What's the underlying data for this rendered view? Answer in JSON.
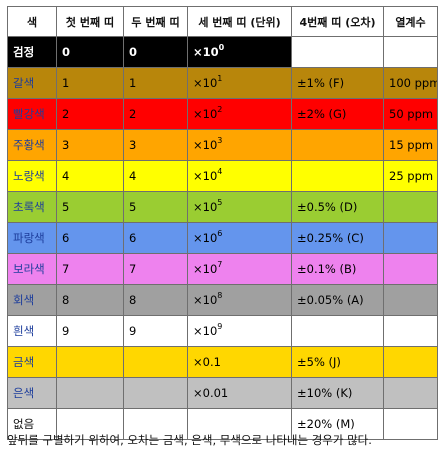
{
  "headers": [
    "색",
    "첫 번째 띠",
    "두 번째 띠",
    "세 번째 띠 (단위)",
    "4번째 띠 (오차)",
    "열계수"
  ],
  "rows": [
    {
      "name": "검정",
      "bg": "#000000",
      "first": "0",
      "second": "0",
      "mult_base": "×10",
      "mult_exp": "0",
      "tol": "",
      "temp": ""
    },
    {
      "name": "갈색",
      "bg": "#b8860b",
      "first": "1",
      "second": "1",
      "mult_base": "×10",
      "mult_exp": "1",
      "tol": "±1% (F)",
      "temp": "100 ppm"
    },
    {
      "name": "빨강색",
      "bg": "#ff0000",
      "first": "2",
      "second": "2",
      "mult_base": "×10",
      "mult_exp": "2",
      "tol": "±2% (G)",
      "temp": "50 ppm"
    },
    {
      "name": "주황색",
      "bg": "#ffa500",
      "first": "3",
      "second": "3",
      "mult_base": "×10",
      "mult_exp": "3",
      "tol": "",
      "temp": "15 ppm"
    },
    {
      "name": "노랑색",
      "bg": "#ffff00",
      "first": "4",
      "second": "4",
      "mult_base": "×10",
      "mult_exp": "4",
      "tol": "",
      "temp": "25 ppm"
    },
    {
      "name": "초록색",
      "bg": "#9acd32",
      "first": "5",
      "second": "5",
      "mult_base": "×10",
      "mult_exp": "5",
      "tol": "±0.5% (D)",
      "temp": ""
    },
    {
      "name": "파랑색",
      "bg": "#6495ed",
      "first": "6",
      "second": "6",
      "mult_base": "×10",
      "mult_exp": "6",
      "tol": "±0.25% (C)",
      "temp": ""
    },
    {
      "name": "보라색",
      "bg": "#ee82ee",
      "first": "7",
      "second": "7",
      "mult_base": "×10",
      "mult_exp": "7",
      "tol": "±0.1% (B)",
      "temp": ""
    },
    {
      "name": "회색",
      "bg": "#a0a0a0",
      "first": "8",
      "second": "8",
      "mult_base": "×10",
      "mult_exp": "8",
      "tol": "±0.05% (A)",
      "temp": ""
    },
    {
      "name": "흰색",
      "bg": "#ffffff",
      "first": "9",
      "second": "9",
      "mult_base": "×10",
      "mult_exp": "9",
      "tol": "",
      "temp": ""
    },
    {
      "name": "금색",
      "bg": "#ffd700",
      "first": "",
      "second": "",
      "mult_base": "×0.1",
      "mult_exp": "",
      "tol": "±5% (J)",
      "temp": ""
    },
    {
      "name": "은색",
      "bg": "#c0c0c0",
      "first": "",
      "second": "",
      "mult_base": "×0.01",
      "mult_exp": "",
      "tol": "±10% (K)",
      "temp": ""
    },
    {
      "name": "없음",
      "bg": "#ffffff",
      "first": "",
      "second": "",
      "mult_base": "",
      "mult_exp": "",
      "tol": "±20% (M)",
      "temp": ""
    }
  ],
  "footnote": "앞뒤를 구별하기 위하여, 오차는 금색, 은색, 무색으로 나타내는 경우가 많다."
}
